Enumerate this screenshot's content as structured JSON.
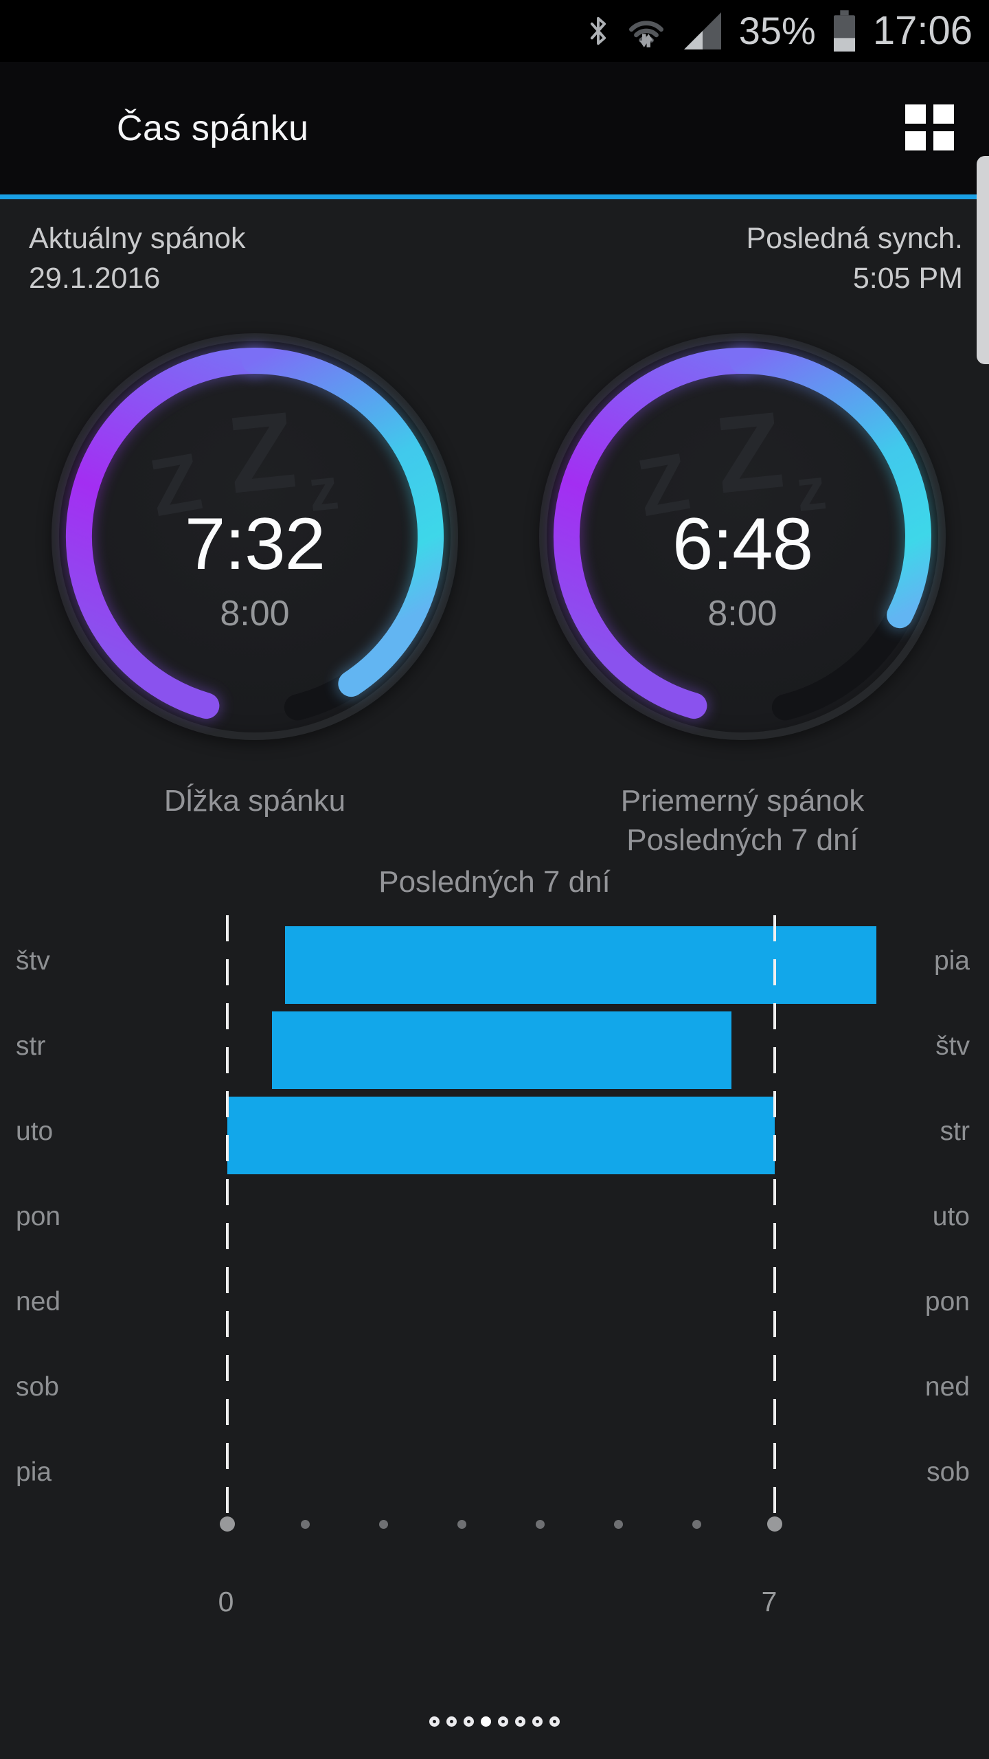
{
  "status_bar": {
    "battery_percent": "35%",
    "battery_level": 0.35,
    "time": "17:06",
    "icons": [
      "bluetooth-icon",
      "wifi-icon",
      "cellular-signal-icon",
      "battery-icon"
    ]
  },
  "header": {
    "title": "Čas spánku"
  },
  "sync": {
    "left_label": "Aktuálny spánok",
    "left_value": "29.1.2016",
    "right_label": "Posledná synch.",
    "right_value": "5:05 PM"
  },
  "gauges": [
    {
      "id": "sleep-duration",
      "time": "7:32",
      "goal": "8:00",
      "minutes": 452,
      "goal_minutes": 480,
      "icon": "zzz-sleep-icon",
      "label_lines": [
        "Dĺžka spánku"
      ]
    },
    {
      "id": "average-sleep",
      "time": "6:48",
      "goal": "8:00",
      "minutes": 408,
      "goal_minutes": 480,
      "icon": "zzz-sleep-icon",
      "label_lines": [
        "Priemerný spánok",
        "Posledných 7 dní"
      ]
    }
  ],
  "chart_data": {
    "type": "bar",
    "orientation": "horizontal",
    "title": "Posledných 7 dní",
    "rows": 7,
    "left_labels": [
      "štv",
      "str",
      "uto",
      "pon",
      "ned",
      "sob",
      "pia"
    ],
    "right_labels": [
      "pia",
      "štv",
      "str",
      "uto",
      "pon",
      "ned",
      "sob"
    ],
    "x_axis": {
      "min": 0,
      "max": 7,
      "tick_labels": [
        "0",
        "7"
      ],
      "dots": 8
    },
    "bars": [
      {
        "row": 0,
        "left_label": "štv",
        "start": 0.74,
        "end": 8.3
      },
      {
        "row": 1,
        "left_label": "str",
        "start": 0.57,
        "end": 6.45
      },
      {
        "row": 2,
        "left_label": "uto",
        "start": 0.0,
        "end": 7.0
      }
    ],
    "bar_color": "#12a7ea",
    "grid": "dashed-bounds-only",
    "legend": "none"
  },
  "pager": {
    "count": 8,
    "active_index": 3
  },
  "colors": {
    "accent_blue": "#1aa0e5",
    "bar_blue": "#12a7ea",
    "arc_purple_start": "#8a52ee",
    "arc_purple_mid": "#a32ef2",
    "arc_violet_top": "#7b6ff5",
    "arc_cyan": "#3ed7e9",
    "arc_end_blue": "#62b5f2",
    "arc_track": "#121316",
    "background": "#1b1c1e",
    "status_bar_bg": "#000000",
    "text_white": "#f5f6f8",
    "text_gray": "#939498"
  }
}
